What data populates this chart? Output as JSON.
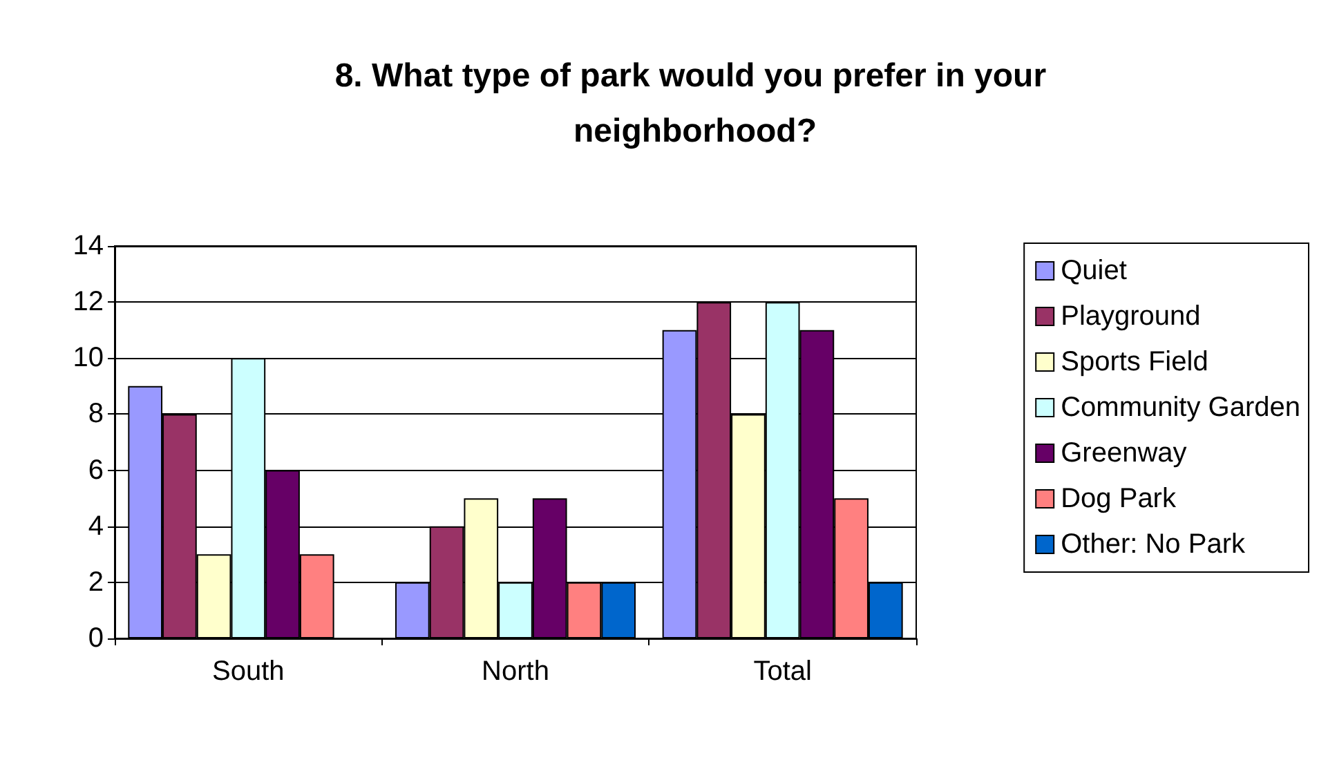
{
  "chart_data": {
    "type": "bar",
    "title": "8. What type of park would you prefer in your neighborhood?",
    "categories": [
      "South",
      "North",
      "Total"
    ],
    "series": [
      {
        "name": "Quiet",
        "color": "#9999ff",
        "values": [
          9,
          2,
          11
        ]
      },
      {
        "name": "Playground",
        "color": "#993366",
        "values": [
          8,
          4,
          12
        ]
      },
      {
        "name": "Sports Field",
        "color": "#ffffcc",
        "values": [
          3,
          5,
          8
        ]
      },
      {
        "name": "Community Garden",
        "color": "#ccffff",
        "values": [
          10,
          2,
          12
        ]
      },
      {
        "name": "Greenway",
        "color": "#660066",
        "values": [
          6,
          5,
          11
        ]
      },
      {
        "name": "Dog Park",
        "color": "#ff8080",
        "values": [
          3,
          2,
          5
        ]
      },
      {
        "name": "Other: No Park",
        "color": "#0066cc",
        "values": [
          0,
          2,
          2
        ]
      }
    ],
    "ylim": [
      0,
      14
    ],
    "yticks": [
      0,
      2,
      4,
      6,
      8,
      10,
      12,
      14
    ],
    "grid": "y",
    "legend": "right"
  }
}
